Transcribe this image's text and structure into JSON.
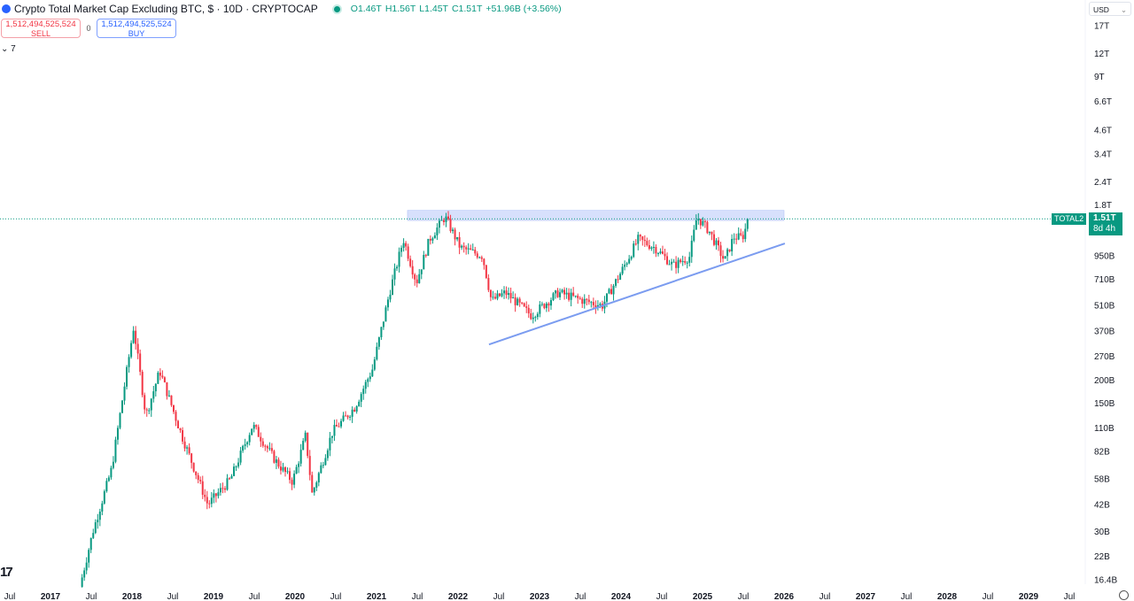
{
  "header": {
    "title": "Crypto Total Market Cap Excluding BTC, $ · 10D · CRYPTOCAP",
    "ohlc": {
      "open": "O1.46T",
      "high": "H1.56T",
      "low": "L1.45T",
      "close": "C1.51T",
      "change": "+51.96B (+3.56%)"
    }
  },
  "trade": {
    "sell_price": "1,512,494,525,524",
    "sell_label": "SELL",
    "spread": "0",
    "buy_price": "1,512,494,525,524",
    "buy_label": "BUY"
  },
  "indicators_toggle": "7",
  "currency": "USD",
  "price_label": {
    "symbol": "TOTAL2",
    "price": "1.51T",
    "countdown": "8d 4h"
  },
  "colors": {
    "up": "#089981",
    "down": "#f23645",
    "zone": "#c9d6fb",
    "trendline": "#7b9cf0"
  },
  "chart_data": {
    "type": "candlestick",
    "title": "Crypto Total Market Cap Excluding BTC",
    "interval": "10D",
    "yscale": "log",
    "ylim_usd": [
      16400000000.0,
      17000000000000.0
    ],
    "y_ticks": [
      {
        "v": 17000000000000.0,
        "label": "17T"
      },
      {
        "v": 12000000000000.0,
        "label": "12T"
      },
      {
        "v": 9000000000000.0,
        "label": "9T"
      },
      {
        "v": 6600000000000.0,
        "label": "6.6T"
      },
      {
        "v": 4600000000000.0,
        "label": "4.6T"
      },
      {
        "v": 3400000000000.0,
        "label": "3.4T"
      },
      {
        "v": 2400000000000.0,
        "label": "2.4T"
      },
      {
        "v": 1800000000000.0,
        "label": "1.8T"
      },
      {
        "v": 950000000000.0,
        "label": "950B"
      },
      {
        "v": 710000000000.0,
        "label": "710B"
      },
      {
        "v": 510000000000.0,
        "label": "510B"
      },
      {
        "v": 370000000000.0,
        "label": "370B"
      },
      {
        "v": 270000000000.0,
        "label": "270B"
      },
      {
        "v": 200000000000.0,
        "label": "200B"
      },
      {
        "v": 150000000000.0,
        "label": "150B"
      },
      {
        "v": 110000000000.0,
        "label": "110B"
      },
      {
        "v": 82000000000.0,
        "label": "82B"
      },
      {
        "v": 58000000000.0,
        "label": "58B"
      },
      {
        "v": 42000000000.0,
        "label": "42B"
      },
      {
        "v": 30000000000.0,
        "label": "30B"
      },
      {
        "v": 22000000000.0,
        "label": "22B"
      },
      {
        "v": 16400000000.0,
        "label": "16.4B"
      }
    ],
    "x_ticks": [
      {
        "t": 2016.5,
        "label": "Jul"
      },
      {
        "t": 2017,
        "label": "2017"
      },
      {
        "t": 2017.5,
        "label": "Jul"
      },
      {
        "t": 2018,
        "label": "2018"
      },
      {
        "t": 2018.5,
        "label": "Jul"
      },
      {
        "t": 2019,
        "label": "2019"
      },
      {
        "t": 2019.5,
        "label": "Jul"
      },
      {
        "t": 2020,
        "label": "2020"
      },
      {
        "t": 2020.5,
        "label": "Jul"
      },
      {
        "t": 2021,
        "label": "2021"
      },
      {
        "t": 2021.5,
        "label": "Jul"
      },
      {
        "t": 2022,
        "label": "2022"
      },
      {
        "t": 2022.5,
        "label": "Jul"
      },
      {
        "t": 2023,
        "label": "2023"
      },
      {
        "t": 2023.5,
        "label": "Jul"
      },
      {
        "t": 2024,
        "label": "2024"
      },
      {
        "t": 2024.5,
        "label": "Jul"
      },
      {
        "t": 2025,
        "label": "2025"
      },
      {
        "t": 2025.5,
        "label": "Jul"
      },
      {
        "t": 2026,
        "label": "2026"
      },
      {
        "t": 2026.5,
        "label": "Jul"
      },
      {
        "t": 2027,
        "label": "2027"
      },
      {
        "t": 2027.5,
        "label": "Jul"
      },
      {
        "t": 2028,
        "label": "2028"
      },
      {
        "t": 2028.5,
        "label": "Jul"
      },
      {
        "t": 2029,
        "label": "2029"
      },
      {
        "t": 2029.5,
        "label": "Jul"
      }
    ],
    "price_path_usd_B": [
      [
        2017.36,
        15
      ],
      [
        2017.52,
        30
      ],
      [
        2017.75,
        66
      ],
      [
        2018.02,
        390
      ],
      [
        2018.17,
        128
      ],
      [
        2018.34,
        225
      ],
      [
        2018.61,
        100
      ],
      [
        2018.93,
        42
      ],
      [
        2019.21,
        58
      ],
      [
        2019.48,
        114
      ],
      [
        2019.75,
        74
      ],
      [
        2019.97,
        56
      ],
      [
        2020.13,
        100
      ],
      [
        2020.21,
        48
      ],
      [
        2020.46,
        105
      ],
      [
        2020.73,
        142
      ],
      [
        2020.95,
        230
      ],
      [
        2021.16,
        600
      ],
      [
        2021.33,
        1170
      ],
      [
        2021.49,
        680
      ],
      [
        2021.65,
        1170
      ],
      [
        2021.84,
        1550
      ],
      [
        2022.03,
        1050
      ],
      [
        2022.3,
        950
      ],
      [
        2022.41,
        540
      ],
      [
        2022.58,
        600
      ],
      [
        2022.9,
        450
      ],
      [
        2023.23,
        600
      ],
      [
        2023.55,
        540
      ],
      [
        2023.77,
        510
      ],
      [
        2023.99,
        760
      ],
      [
        2024.21,
        1170
      ],
      [
        2024.42,
        1050
      ],
      [
        2024.64,
        840
      ],
      [
        2024.84,
        940
      ],
      [
        2024.93,
        1550
      ],
      [
        2025.08,
        1300
      ],
      [
        2025.27,
        890
      ],
      [
        2025.38,
        1200
      ],
      [
        2025.49,
        1200
      ],
      [
        2025.57,
        1510
      ]
    ],
    "resistance_zone_usd": {
      "from_t": 2021.38,
      "to_t": 2026.0,
      "low": 1480000000000.0,
      "high": 1680000000000.0
    },
    "trendline_usd": {
      "t1": 2022.38,
      "v1": 313000000000.0,
      "t2": 2026.01,
      "v2": 1110000000000.0
    },
    "last_price_usd": 1510000000000.0
  }
}
